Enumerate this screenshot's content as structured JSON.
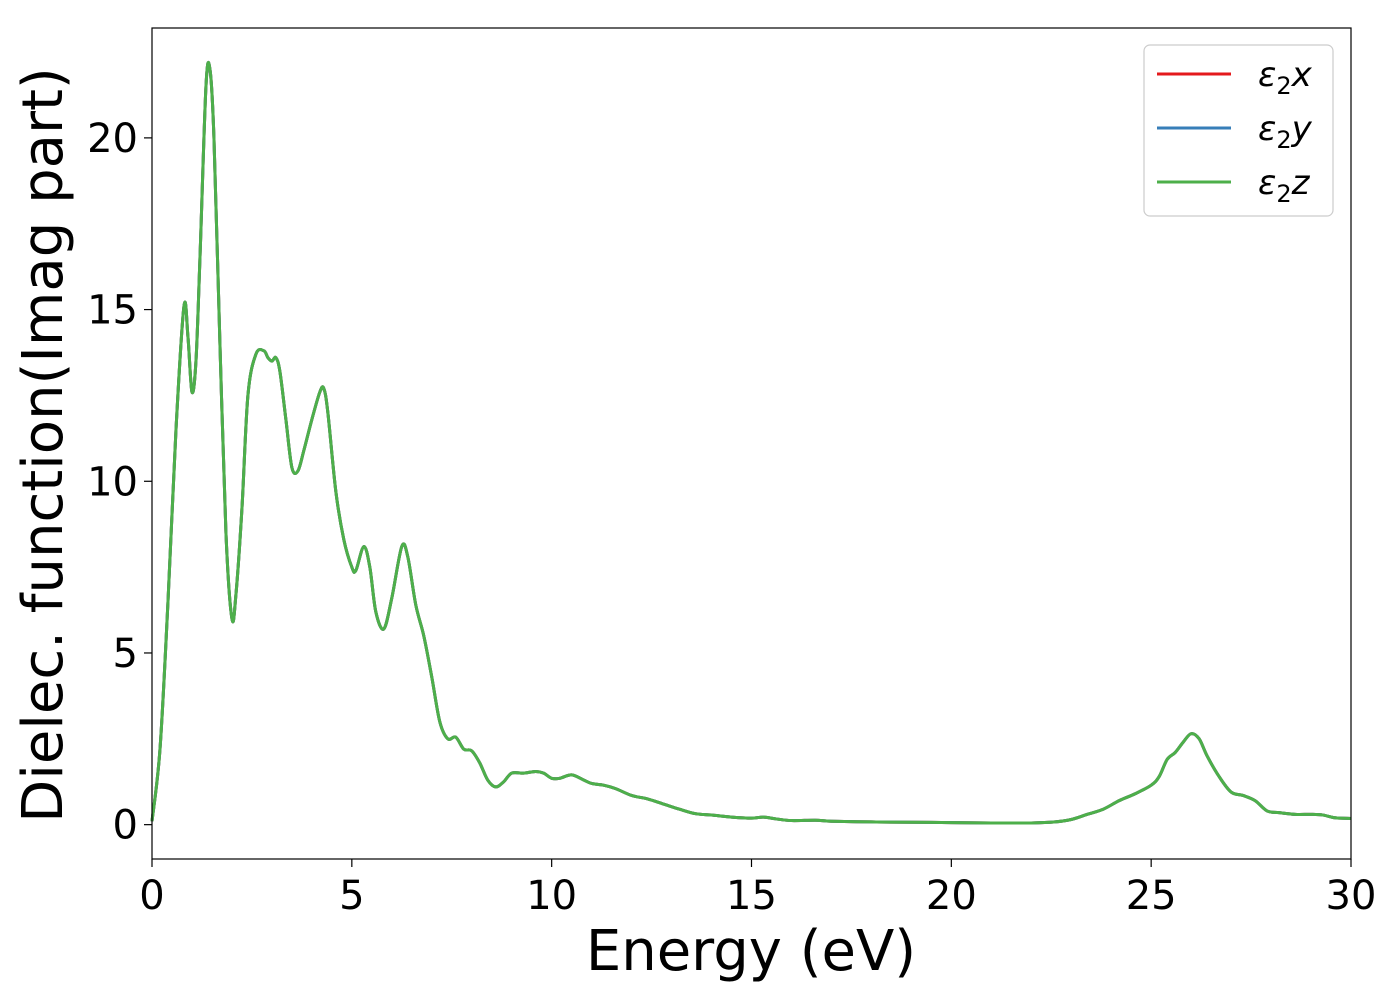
{
  "chart_data": {
    "type": "line",
    "title": "",
    "xlabel": "Energy (eV)",
    "ylabel": "Dielec. function(Imag part)",
    "xlim": [
      0,
      30
    ],
    "ylim": [
      -1.0,
      23.2
    ],
    "xticks": [
      0,
      5,
      10,
      15,
      20,
      25,
      30
    ],
    "yticks": [
      0,
      5,
      10,
      15,
      20
    ],
    "grid": false,
    "legend_position": "top-right",
    "series": [
      {
        "name": "ε₂x",
        "legend_main": "ε",
        "legend_sub": "2",
        "legend_tail": "x",
        "color": "#e41a1c",
        "x": [
          0,
          0.2,
          0.4,
          0.6,
          0.8,
          0.9,
          1.0,
          1.1,
          1.2,
          1.35,
          1.45,
          1.55,
          1.7,
          1.85,
          2.0,
          2.1,
          2.25,
          2.4,
          2.6,
          2.8,
          2.9,
          3.0,
          3.1,
          3.2,
          3.35,
          3.5,
          3.65,
          3.8,
          4.0,
          4.2,
          4.3,
          4.4,
          4.6,
          4.8,
          5.0,
          5.1,
          5.3,
          5.45,
          5.6,
          5.8,
          6.0,
          6.25,
          6.4,
          6.6,
          6.8,
          7.0,
          7.2,
          7.4,
          7.6,
          7.8,
          8.0,
          8.2,
          8.4,
          8.6,
          8.8,
          9.0,
          9.3,
          9.6,
          9.8,
          10.0,
          10.2,
          10.5,
          10.8,
          11.0,
          11.3,
          11.6,
          12.0,
          12.4,
          12.8,
          13.2,
          13.6,
          14.0,
          14.5,
          15.0,
          15.3,
          15.6,
          16.0,
          16.6,
          17.0,
          18.0,
          19.0,
          20.0,
          21.0,
          22.0,
          22.6,
          23.0,
          23.4,
          23.8,
          24.2,
          24.6,
          25.0,
          25.2,
          25.4,
          25.6,
          25.8,
          26.0,
          26.2,
          26.4,
          26.7,
          27.0,
          27.3,
          27.6,
          27.9,
          28.2,
          28.6,
          29.0,
          29.3,
          29.6,
          30.0
        ],
        "y": [
          0.1,
          2.2,
          6.5,
          11.5,
          15.1,
          14.2,
          12.6,
          13.5,
          16.5,
          21.5,
          22.0,
          20.0,
          14.0,
          8.5,
          6.0,
          6.7,
          9.2,
          12.5,
          13.7,
          13.8,
          13.6,
          13.5,
          13.6,
          13.2,
          11.8,
          10.4,
          10.3,
          10.9,
          11.8,
          12.6,
          12.7,
          12.0,
          9.7,
          8.3,
          7.5,
          7.4,
          8.1,
          7.5,
          6.2,
          5.7,
          6.6,
          8.1,
          7.8,
          6.4,
          5.5,
          4.3,
          3.0,
          2.5,
          2.55,
          2.2,
          2.15,
          1.8,
          1.3,
          1.1,
          1.25,
          1.5,
          1.5,
          1.55,
          1.5,
          1.35,
          1.35,
          1.45,
          1.3,
          1.2,
          1.15,
          1.05,
          0.85,
          0.75,
          0.6,
          0.45,
          0.32,
          0.28,
          0.22,
          0.19,
          0.22,
          0.17,
          0.12,
          0.13,
          0.1,
          0.08,
          0.07,
          0.06,
          0.05,
          0.05,
          0.08,
          0.15,
          0.3,
          0.45,
          0.7,
          0.9,
          1.15,
          1.4,
          1.9,
          2.1,
          2.4,
          2.65,
          2.5,
          2.0,
          1.4,
          0.95,
          0.85,
          0.7,
          0.4,
          0.35,
          0.3,
          0.3,
          0.28,
          0.2,
          0.18
        ]
      },
      {
        "name": "ε₂y",
        "legend_main": "ε",
        "legend_sub": "2",
        "legend_tail": "y",
        "color": "#377eb8",
        "x": [
          0,
          0.2,
          0.4,
          0.6,
          0.8,
          0.9,
          1.0,
          1.1,
          1.2,
          1.35,
          1.45,
          1.55,
          1.7,
          1.85,
          2.0,
          2.1,
          2.25,
          2.4,
          2.6,
          2.8,
          2.9,
          3.0,
          3.1,
          3.2,
          3.35,
          3.5,
          3.65,
          3.8,
          4.0,
          4.2,
          4.3,
          4.4,
          4.6,
          4.8,
          5.0,
          5.1,
          5.3,
          5.45,
          5.6,
          5.8,
          6.0,
          6.25,
          6.4,
          6.6,
          6.8,
          7.0,
          7.2,
          7.4,
          7.6,
          7.8,
          8.0,
          8.2,
          8.4,
          8.6,
          8.8,
          9.0,
          9.3,
          9.6,
          9.8,
          10.0,
          10.2,
          10.5,
          10.8,
          11.0,
          11.3,
          11.6,
          12.0,
          12.4,
          12.8,
          13.2,
          13.6,
          14.0,
          14.5,
          15.0,
          15.3,
          15.6,
          16.0,
          16.6,
          17.0,
          18.0,
          19.0,
          20.0,
          21.0,
          22.0,
          22.6,
          23.0,
          23.4,
          23.8,
          24.2,
          24.6,
          25.0,
          25.2,
          25.4,
          25.6,
          25.8,
          26.0,
          26.2,
          26.4,
          26.7,
          27.0,
          27.3,
          27.6,
          27.9,
          28.2,
          28.6,
          29.0,
          29.3,
          29.6,
          30.0
        ],
        "y": [
          0.1,
          2.2,
          6.5,
          11.5,
          15.1,
          14.2,
          12.6,
          13.5,
          16.5,
          21.5,
          22.0,
          20.0,
          14.0,
          8.5,
          6.0,
          6.7,
          9.2,
          12.5,
          13.7,
          13.8,
          13.6,
          13.5,
          13.6,
          13.2,
          11.8,
          10.4,
          10.3,
          10.9,
          11.8,
          12.6,
          12.7,
          12.0,
          9.7,
          8.3,
          7.5,
          7.4,
          8.1,
          7.5,
          6.2,
          5.7,
          6.6,
          8.1,
          7.8,
          6.4,
          5.5,
          4.3,
          3.0,
          2.5,
          2.55,
          2.2,
          2.15,
          1.8,
          1.3,
          1.1,
          1.25,
          1.5,
          1.5,
          1.55,
          1.5,
          1.35,
          1.35,
          1.45,
          1.3,
          1.2,
          1.15,
          1.05,
          0.85,
          0.75,
          0.6,
          0.45,
          0.32,
          0.28,
          0.22,
          0.19,
          0.22,
          0.17,
          0.12,
          0.13,
          0.1,
          0.08,
          0.07,
          0.06,
          0.05,
          0.05,
          0.08,
          0.15,
          0.3,
          0.45,
          0.7,
          0.9,
          1.15,
          1.4,
          1.9,
          2.1,
          2.4,
          2.65,
          2.5,
          2.0,
          1.4,
          0.95,
          0.85,
          0.7,
          0.4,
          0.35,
          0.3,
          0.3,
          0.28,
          0.2,
          0.18
        ]
      },
      {
        "name": "ε₂z",
        "legend_main": "ε",
        "legend_sub": "2",
        "legend_tail": "z",
        "color": "#4daf4a",
        "x": [
          0,
          0.2,
          0.4,
          0.6,
          0.8,
          0.9,
          1.0,
          1.1,
          1.2,
          1.35,
          1.45,
          1.55,
          1.7,
          1.85,
          2.0,
          2.1,
          2.25,
          2.4,
          2.6,
          2.8,
          2.9,
          3.0,
          3.1,
          3.2,
          3.35,
          3.5,
          3.65,
          3.8,
          4.0,
          4.2,
          4.3,
          4.4,
          4.6,
          4.8,
          5.0,
          5.1,
          5.3,
          5.45,
          5.6,
          5.8,
          6.0,
          6.25,
          6.4,
          6.6,
          6.8,
          7.0,
          7.2,
          7.4,
          7.6,
          7.8,
          8.0,
          8.2,
          8.4,
          8.6,
          8.8,
          9.0,
          9.3,
          9.6,
          9.8,
          10.0,
          10.2,
          10.5,
          10.8,
          11.0,
          11.3,
          11.6,
          12.0,
          12.4,
          12.8,
          13.2,
          13.6,
          14.0,
          14.5,
          15.0,
          15.3,
          15.6,
          16.0,
          16.6,
          17.0,
          18.0,
          19.0,
          20.0,
          21.0,
          22.0,
          22.6,
          23.0,
          23.4,
          23.8,
          24.2,
          24.6,
          25.0,
          25.2,
          25.4,
          25.6,
          25.8,
          26.0,
          26.2,
          26.4,
          26.7,
          27.0,
          27.3,
          27.6,
          27.9,
          28.2,
          28.6,
          29.0,
          29.3,
          29.6,
          30.0
        ],
        "y": [
          0.1,
          2.2,
          6.5,
          11.5,
          15.1,
          14.2,
          12.6,
          13.5,
          16.5,
          21.5,
          22.0,
          20.0,
          14.0,
          8.5,
          6.0,
          6.7,
          9.2,
          12.5,
          13.7,
          13.8,
          13.6,
          13.5,
          13.6,
          13.2,
          11.8,
          10.4,
          10.3,
          10.9,
          11.8,
          12.6,
          12.7,
          12.0,
          9.7,
          8.3,
          7.5,
          7.4,
          8.1,
          7.5,
          6.2,
          5.7,
          6.6,
          8.1,
          7.8,
          6.4,
          5.5,
          4.3,
          3.0,
          2.5,
          2.55,
          2.2,
          2.15,
          1.8,
          1.3,
          1.1,
          1.25,
          1.5,
          1.5,
          1.55,
          1.5,
          1.35,
          1.35,
          1.45,
          1.3,
          1.2,
          1.15,
          1.05,
          0.85,
          0.75,
          0.6,
          0.45,
          0.32,
          0.28,
          0.22,
          0.19,
          0.22,
          0.17,
          0.12,
          0.13,
          0.1,
          0.08,
          0.07,
          0.06,
          0.05,
          0.05,
          0.08,
          0.15,
          0.3,
          0.45,
          0.7,
          0.9,
          1.15,
          1.4,
          1.9,
          2.1,
          2.4,
          2.65,
          2.5,
          2.0,
          1.4,
          0.95,
          0.85,
          0.7,
          0.4,
          0.35,
          0.3,
          0.3,
          0.28,
          0.2,
          0.18
        ]
      }
    ]
  }
}
